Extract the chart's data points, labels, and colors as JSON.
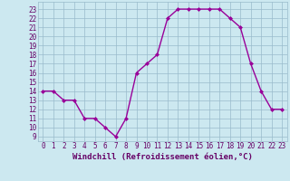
{
  "x": [
    0,
    1,
    2,
    3,
    4,
    5,
    6,
    7,
    8,
    9,
    10,
    11,
    12,
    13,
    14,
    15,
    16,
    17,
    18,
    19,
    20,
    21,
    22,
    23
  ],
  "y": [
    14,
    14,
    13,
    13,
    11,
    11,
    10,
    9,
    11,
    16,
    17,
    18,
    22,
    23,
    23,
    23,
    23,
    23,
    22,
    21,
    17,
    14,
    12,
    12
  ],
  "line_color": "#990099",
  "marker": "D",
  "marker_size": 2.0,
  "background_color": "#cce8f0",
  "grid_color": "#99bbcc",
  "xlabel": "Windchill (Refroidissement éolien,°C)",
  "xlabel_color": "#660066",
  "xlabel_fontsize": 6.5,
  "ylabel_ticks": [
    9,
    10,
    11,
    12,
    13,
    14,
    15,
    16,
    17,
    18,
    19,
    20,
    21,
    22,
    23
  ],
  "xlim": [
    -0.5,
    23.5
  ],
  "ylim": [
    8.5,
    23.8
  ],
  "tick_color": "#660066",
  "tick_fontsize": 5.5,
  "line_width": 1.0
}
